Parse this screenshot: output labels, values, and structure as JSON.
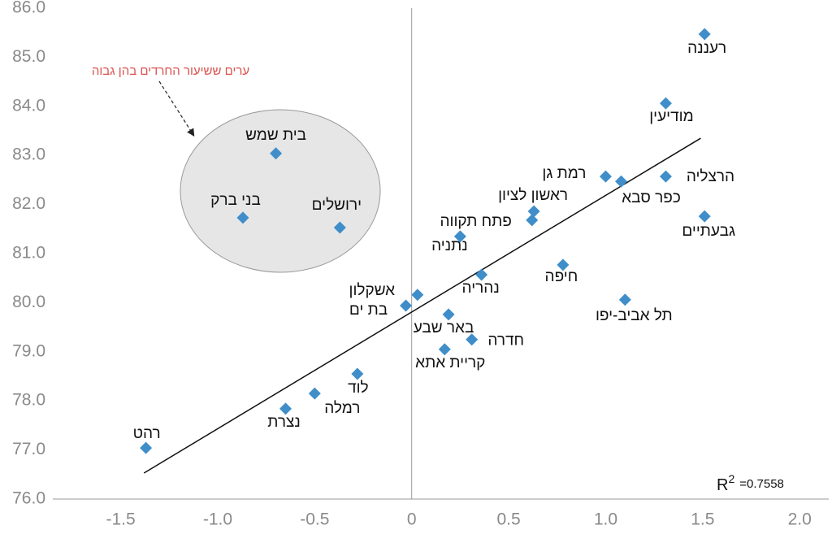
{
  "chart_data": {
    "type": "scatter",
    "x": [
      1.51,
      1.31,
      1.0,
      1.08,
      1.31,
      1.51,
      0.63,
      0.62,
      0.25,
      0.78,
      0.36,
      1.1,
      0.03,
      -0.03,
      0.19,
      0.31,
      0.17,
      -0.28,
      -0.5,
      -0.65,
      -1.37,
      -0.7,
      -0.87,
      -0.37
    ],
    "values": [
      85.47,
      84.06,
      82.57,
      82.47,
      82.57,
      81.76,
      81.86,
      81.68,
      81.35,
      80.77,
      80.57,
      80.06,
      80.16,
      79.94,
      79.76,
      79.25,
      79.05,
      78.55,
      78.15,
      77.84,
      77.04,
      83.04,
      81.73,
      81.53
    ],
    "point_labels": [
      "רעננה",
      "מודיעין",
      "רמת גן",
      "כפר סבא",
      "הרצליה",
      "גבעתיים",
      "ראשון לציון",
      "פתח תקווה",
      "נתניה",
      "חיפה",
      "נהריה",
      "תל אביב-יפו",
      "אשקלון",
      "בת ים",
      "באר שבע",
      "חדרה",
      "קריית אתא",
      "לוד",
      "רמלה",
      "נצרת",
      "רהט",
      "בית שמש",
      "בני ברק",
      "ירושלים"
    ],
    "color": "#3f8ec9",
    "trendline": {
      "x": [
        -1.38,
        1.49
      ],
      "y": [
        76.53,
        83.35
      ]
    },
    "r2": {
      "label": "R",
      "sup": "2",
      "text": "=0.7558"
    },
    "annotation": "ערים ששיעור החרדים בהן גבוה",
    "xlim": [
      -1.85,
      2.15
    ],
    "ylim": [
      76,
      86
    ],
    "xticks": [
      -1.5,
      {
        "value": -1,
        "label": "-1.0"
      },
      -0.5,
      0,
      0.5,
      {
        "value": 1,
        "label": "1.0"
      },
      1.5,
      {
        "value": 2,
        "label": "2.0"
      }
    ],
    "yticks": [
      {
        "value": 76,
        "label": "76.0"
      },
      {
        "value": 77,
        "label": "77.0"
      },
      {
        "value": 78,
        "label": "78.0"
      },
      {
        "value": 79,
        "label": "79.0"
      },
      {
        "value": 80,
        "label": "80.0"
      },
      {
        "value": 81,
        "label": "81.0"
      },
      {
        "value": 82,
        "label": "82.0"
      },
      {
        "value": 83,
        "label": "83.0"
      },
      {
        "value": 84,
        "label": "84.0"
      },
      {
        "value": 85,
        "label": "85.0"
      },
      {
        "value": 86,
        "label": "86.0"
      }
    ]
  }
}
